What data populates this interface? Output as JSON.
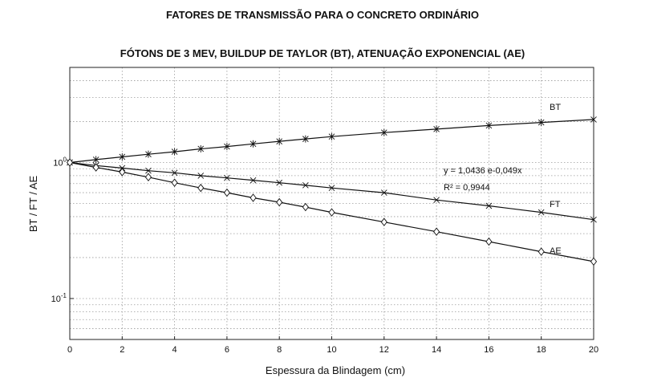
{
  "chart_data": {
    "type": "line",
    "title": "FATORES DE TRANSMISSÃO PARA O CONCRETO ORDINÁRIO",
    "subtitle": "FÓTONS DE 3 MEV, BUILDUP DE TAYLOR (BT), ATENUAÇÃO EXPONENCIAL (AE)",
    "xlabel": "Espessura da Blindagem (cm)",
    "ylabel": "BT / FT / AE",
    "xlim": [
      0,
      20
    ],
    "ylim": [
      0.05,
      5
    ],
    "yscale": "log",
    "grid": true,
    "x_ticks": [
      "0",
      "2",
      "4",
      "6",
      "8",
      "10",
      "12",
      "14",
      "16",
      "18",
      "20"
    ],
    "y_ticks": [
      {
        "value": 1,
        "base": "10",
        "exp": "0"
      },
      {
        "value": 0.1,
        "base": "10",
        "exp": "-1"
      }
    ],
    "series": [
      {
        "name": "BT",
        "marker": "star",
        "x": [
          0,
          1,
          2,
          3,
          4,
          5,
          6,
          7,
          8,
          9,
          10,
          12,
          14,
          16,
          18,
          20
        ],
        "y": [
          1.0,
          1.05,
          1.1,
          1.15,
          1.2,
          1.26,
          1.31,
          1.37,
          1.43,
          1.49,
          1.55,
          1.66,
          1.76,
          1.87,
          1.97,
          2.07
        ]
      },
      {
        "name": "FT",
        "marker": "x",
        "x": [
          0,
          1,
          2,
          3,
          4,
          5,
          6,
          7,
          8,
          9,
          10,
          12,
          14,
          16,
          18,
          20
        ],
        "y": [
          1.0,
          0.95,
          0.91,
          0.87,
          0.84,
          0.8,
          0.77,
          0.74,
          0.71,
          0.68,
          0.65,
          0.6,
          0.53,
          0.48,
          0.43,
          0.38
        ]
      },
      {
        "name": "AE",
        "marker": "diamond",
        "x": [
          0,
          1,
          2,
          3,
          4,
          5,
          6,
          7,
          8,
          9,
          10,
          12,
          14,
          16,
          18,
          20
        ],
        "y": [
          1.0,
          0.92,
          0.85,
          0.78,
          0.71,
          0.65,
          0.6,
          0.55,
          0.51,
          0.47,
          0.43,
          0.365,
          0.31,
          0.262,
          0.221,
          0.187
        ]
      }
    ],
    "annotations": {
      "equation": "y = 1,0436 e-0,049x",
      "r_squared": "R² = 0,9944"
    }
  }
}
